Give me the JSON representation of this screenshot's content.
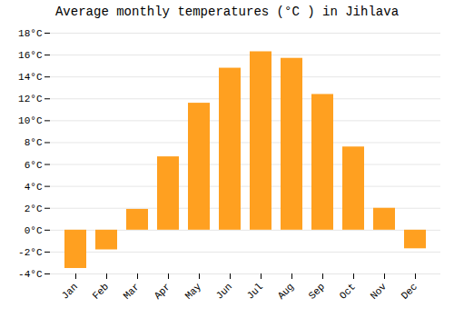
{
  "chart_data": {
    "type": "bar",
    "title": "Average monthly temperatures (°C ) in Jihlava",
    "categories": [
      "Jan",
      "Feb",
      "Mar",
      "Apr",
      "May",
      "Jun",
      "Jul",
      "Aug",
      "Sep",
      "Oct",
      "Nov",
      "Dec"
    ],
    "values": [
      -3.5,
      -1.8,
      1.9,
      6.7,
      11.6,
      14.8,
      16.3,
      15.7,
      12.4,
      7.6,
      2.0,
      -1.7
    ],
    "color": "#FFA020",
    "ylim": [
      -4,
      18
    ],
    "yticks": [
      {
        "value": -4,
        "label": "-4°C"
      },
      {
        "value": -2,
        "label": "-2°C"
      },
      {
        "value": 0,
        "label": "0°C"
      },
      {
        "value": 2,
        "label": "2°C"
      },
      {
        "value": 4,
        "label": "4°C"
      },
      {
        "value": 6,
        "label": "6°C"
      },
      {
        "value": 8,
        "label": "8°C"
      },
      {
        "value": 10,
        "label": "10°C"
      },
      {
        "value": 12,
        "label": "12°C"
      },
      {
        "value": 14,
        "label": "14°C"
      },
      {
        "value": 16,
        "label": "16°C"
      },
      {
        "value": 18,
        "label": "18°C"
      }
    ],
    "grid": true
  }
}
